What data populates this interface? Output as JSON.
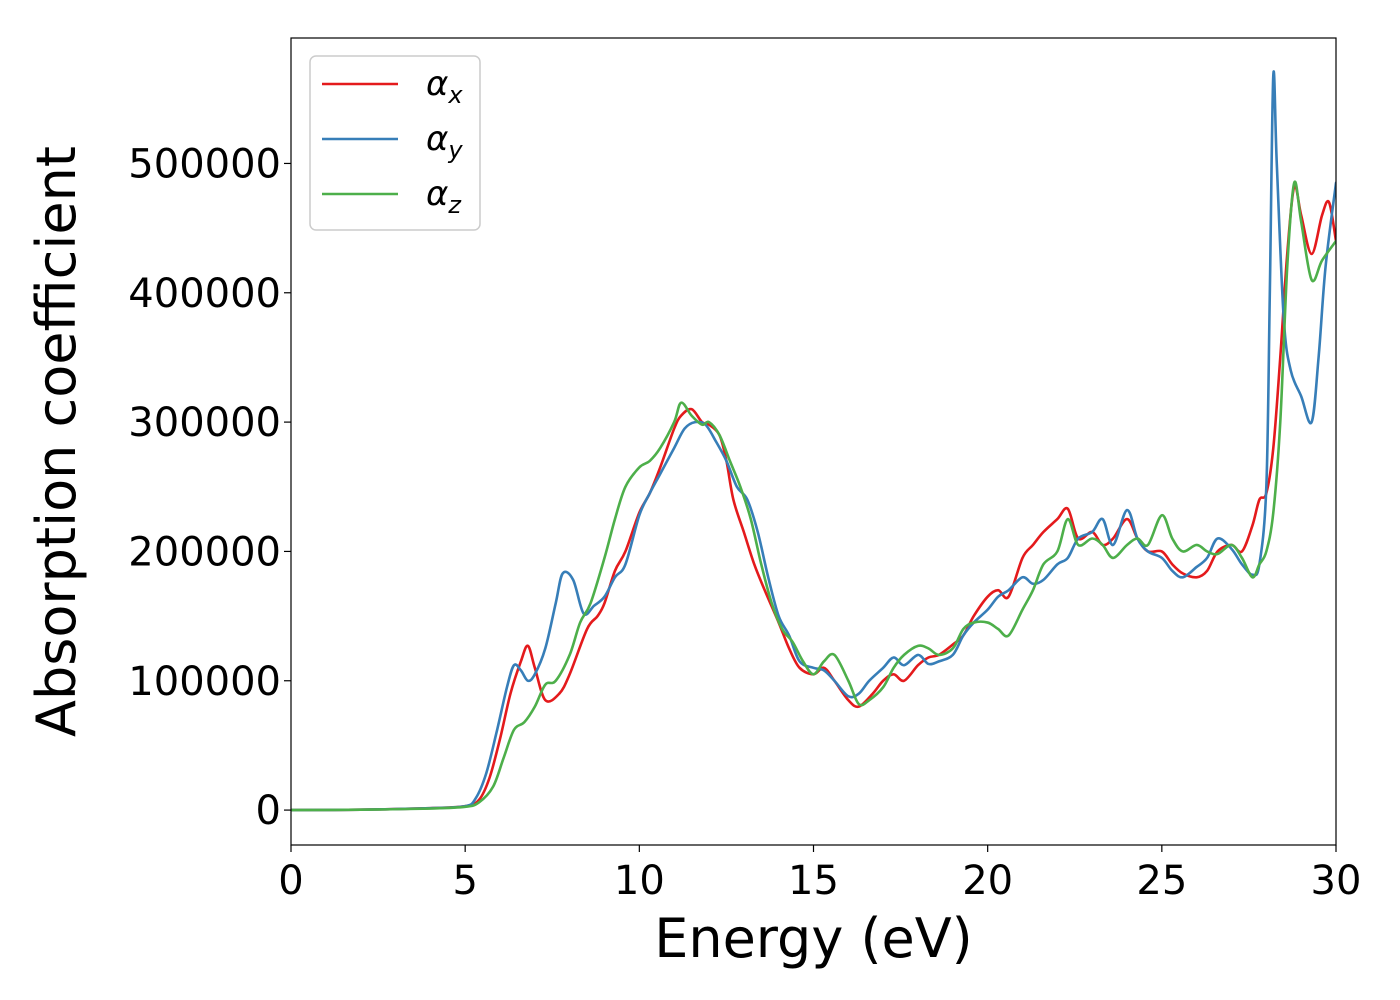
{
  "chart_data": {
    "type": "line",
    "title": "",
    "xlabel": "Energy (eV)",
    "ylabel": "Absorption coefficient",
    "xlim": [
      0,
      30
    ],
    "ylim": [
      -27000,
      597000
    ],
    "xticks": [
      0,
      5,
      10,
      15,
      20,
      25,
      30
    ],
    "xtick_labels": [
      "0",
      "5",
      "10",
      "15",
      "20",
      "25",
      "30"
    ],
    "yticks": [
      0,
      100000,
      200000,
      300000,
      400000,
      500000
    ],
    "ytick_labels": [
      "0",
      "100000",
      "200000",
      "300000",
      "400000",
      "500000"
    ],
    "grid": false,
    "legend_position": "top-left",
    "series": [
      {
        "name": "α",
        "subscript": "x",
        "color": "#e41a1c",
        "x": [
          0,
          2,
          4,
          5,
          5.4,
          5.7,
          6.0,
          6.3,
          6.6,
          6.8,
          7.0,
          7.3,
          7.7,
          8.0,
          8.5,
          8.8,
          9.0,
          9.3,
          9.6,
          10.0,
          10.3,
          10.6,
          11.0,
          11.2,
          11.5,
          11.8,
          12.0,
          12.3,
          12.5,
          12.7,
          13.0,
          13.3,
          13.6,
          14.0,
          14.3,
          14.6,
          15.0,
          15.3,
          15.6,
          16.0,
          16.3,
          16.7,
          17.0,
          17.3,
          17.6,
          18.0,
          18.3,
          18.6,
          19.0,
          19.3,
          19.6,
          20.0,
          20.3,
          20.6,
          21.0,
          21.3,
          21.6,
          22.0,
          22.3,
          22.6,
          23.0,
          23.3,
          23.6,
          24.0,
          24.3,
          24.6,
          25.0,
          25.3,
          25.6,
          26.0,
          26.3,
          26.6,
          27.0,
          27.3,
          27.6,
          27.8,
          28.0,
          28.2,
          28.4,
          28.6,
          28.8,
          29.0,
          29.3,
          29.6,
          29.8,
          30.0
        ],
        "y": [
          0,
          300,
          1500,
          3000,
          8000,
          25000,
          55000,
          90000,
          115000,
          127000,
          110000,
          85000,
          90000,
          105000,
          140000,
          150000,
          160000,
          185000,
          200000,
          230000,
          245000,
          265000,
          295000,
          305000,
          310000,
          300000,
          298000,
          290000,
          270000,
          240000,
          215000,
          190000,
          170000,
          145000,
          125000,
          110000,
          105000,
          110000,
          100000,
          85000,
          80000,
          90000,
          100000,
          105000,
          100000,
          112000,
          118000,
          120000,
          128000,
          135000,
          150000,
          165000,
          170000,
          165000,
          195000,
          205000,
          215000,
          225000,
          233000,
          210000,
          215000,
          205000,
          210000,
          225000,
          210000,
          200000,
          200000,
          190000,
          183000,
          180000,
          185000,
          200000,
          205000,
          200000,
          220000,
          240000,
          245000,
          280000,
          350000,
          430000,
          482000,
          460000,
          430000,
          460000,
          470000,
          440000
        ]
      },
      {
        "name": "α",
        "subscript": "y",
        "color": "#377eb8",
        "x": [
          0,
          2,
          4,
          5,
          5.3,
          5.6,
          5.9,
          6.2,
          6.4,
          6.6,
          6.8,
          7.0,
          7.3,
          7.6,
          7.8,
          8.1,
          8.4,
          8.7,
          9.0,
          9.3,
          9.6,
          10.0,
          10.3,
          10.6,
          11.0,
          11.3,
          11.6,
          11.9,
          12.2,
          12.5,
          12.8,
          13.1,
          13.4,
          13.7,
          14.0,
          14.3,
          14.6,
          15.0,
          15.3,
          15.6,
          16.0,
          16.3,
          16.6,
          17.0,
          17.3,
          17.6,
          18.0,
          18.3,
          18.6,
          19.0,
          19.3,
          19.6,
          20.0,
          20.3,
          20.6,
          21.0,
          21.3,
          21.6,
          22.0,
          22.3,
          22.6,
          23.0,
          23.3,
          23.6,
          24.0,
          24.3,
          24.6,
          25.0,
          25.3,
          25.6,
          26.0,
          26.3,
          26.6,
          27.0,
          27.3,
          27.6,
          27.8,
          28.0,
          28.1,
          28.2,
          28.3,
          28.5,
          28.7,
          29.0,
          29.3,
          29.5,
          29.7,
          30.0
        ],
        "y": [
          0,
          300,
          1500,
          3000,
          9000,
          28000,
          60000,
          95000,
          112000,
          108000,
          100000,
          105000,
          125000,
          160000,
          183000,
          178000,
          152000,
          158000,
          165000,
          180000,
          190000,
          228000,
          245000,
          260000,
          280000,
          295000,
          300000,
          298000,
          285000,
          270000,
          250000,
          240000,
          215000,
          180000,
          150000,
          135000,
          115000,
          110000,
          108000,
          100000,
          88000,
          90000,
          100000,
          110000,
          118000,
          112000,
          120000,
          113000,
          115000,
          120000,
          135000,
          145000,
          155000,
          165000,
          170000,
          180000,
          175000,
          178000,
          190000,
          195000,
          210000,
          215000,
          225000,
          205000,
          232000,
          210000,
          200000,
          195000,
          185000,
          180000,
          188000,
          195000,
          210000,
          202000,
          190000,
          182000,
          190000,
          250000,
          400000,
          568000,
          500000,
          380000,
          340000,
          320000,
          300000,
          350000,
          420000,
          485000
        ]
      },
      {
        "name": "α",
        "subscript": "z",
        "color": "#4daf4a",
        "x": [
          0,
          2,
          4,
          5,
          5.4,
          5.8,
          6.1,
          6.4,
          6.7,
          7.0,
          7.3,
          7.6,
          8.0,
          8.3,
          8.6,
          9.0,
          9.3,
          9.6,
          10.0,
          10.3,
          10.6,
          11.0,
          11.2,
          11.5,
          11.8,
          12.0,
          12.3,
          12.6,
          12.9,
          13.2,
          13.5,
          13.8,
          14.1,
          14.4,
          14.7,
          15.0,
          15.3,
          15.6,
          16.0,
          16.3,
          16.6,
          17.0,
          17.3,
          17.6,
          18.0,
          18.3,
          18.6,
          19.0,
          19.3,
          19.6,
          20.0,
          20.3,
          20.6,
          21.0,
          21.3,
          21.6,
          22.0,
          22.3,
          22.6,
          23.0,
          23.3,
          23.6,
          24.0,
          24.3,
          24.6,
          25.0,
          25.3,
          25.6,
          26.0,
          26.3,
          26.6,
          27.0,
          27.3,
          27.6,
          27.8,
          28.0,
          28.2,
          28.4,
          28.6,
          28.8,
          29.0,
          29.3,
          29.6,
          30.0
        ],
        "y": [
          0,
          300,
          1200,
          2500,
          6000,
          18000,
          40000,
          62000,
          68000,
          80000,
          97000,
          100000,
          120000,
          145000,
          160000,
          195000,
          225000,
          250000,
          265000,
          270000,
          280000,
          300000,
          315000,
          305000,
          298000,
          300000,
          290000,
          270000,
          250000,
          225000,
          190000,
          160000,
          140000,
          130000,
          115000,
          105000,
          115000,
          120000,
          100000,
          82000,
          85000,
          95000,
          110000,
          120000,
          127000,
          125000,
          120000,
          125000,
          140000,
          145000,
          145000,
          140000,
          135000,
          155000,
          170000,
          190000,
          200000,
          225000,
          205000,
          210000,
          205000,
          195000,
          205000,
          210000,
          205000,
          228000,
          210000,
          200000,
          205000,
          200000,
          198000,
          205000,
          195000,
          180000,
          190000,
          200000,
          230000,
          300000,
          420000,
          485000,
          455000,
          410000,
          425000,
          440000
        ]
      }
    ]
  }
}
